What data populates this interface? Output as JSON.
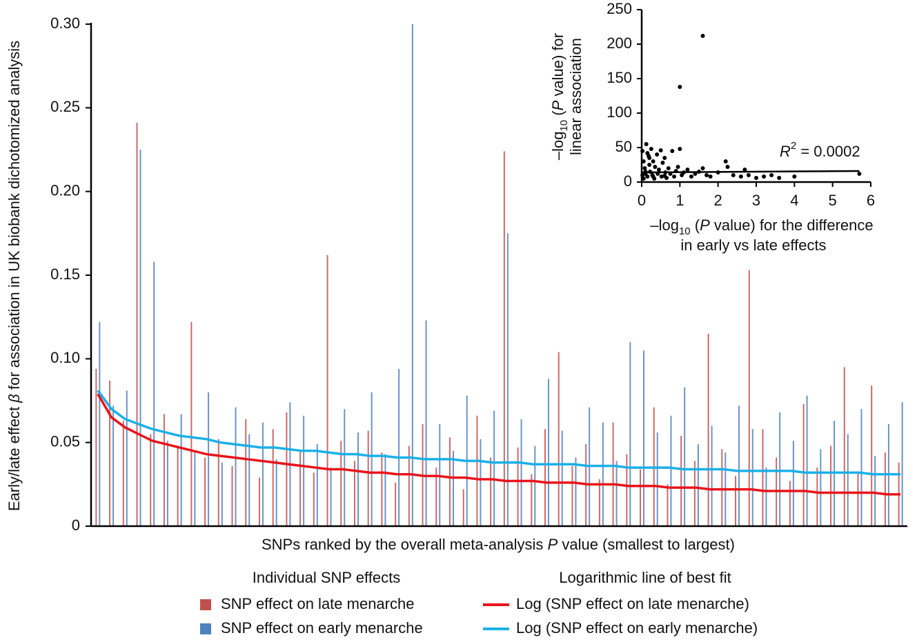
{
  "chart_data": [
    {
      "type": "bar",
      "ylabel": [
        "Early/late effect ",
        "β",
        " for association in UK biobank dichotomized analysis"
      ],
      "xlabel": [
        "SNPs ranked by the overall meta-analysis ",
        "P",
        " value (smallest to largest)"
      ],
      "legend_titles": [
        "Individual SNP effects",
        "Logarithmic line of best fit"
      ],
      "ylim": [
        0,
        0.3
      ],
      "yticks": [
        0,
        0.05,
        {
          "value": 0.1,
          "label": "0.10"
        },
        0.15,
        {
          "value": 0.2,
          "label": "0.20"
        },
        0.25,
        {
          "value": 0.3,
          "label": "0.30"
        }
      ],
      "categories": [
        null,
        null,
        null,
        null,
        null,
        null,
        null,
        null,
        null,
        null,
        null,
        null,
        null,
        null,
        null,
        null,
        null,
        null,
        null,
        null,
        null,
        null,
        null,
        null,
        null,
        null,
        null,
        null,
        null,
        null,
        null,
        null,
        null,
        null,
        null,
        null,
        null,
        null,
        null,
        null,
        null,
        null,
        null,
        null,
        null,
        null,
        null,
        null,
        null,
        null,
        null,
        null,
        null,
        null,
        null,
        null,
        null,
        null,
        null,
        null
      ],
      "series": [
        {
          "name": "SNP effect on late menarche",
          "type": "bar",
          "color": "#c0504d",
          "values": [
            0.094,
            0.087,
            0.063,
            0.241,
            0.055,
            0.067,
            0.048,
            0.122,
            0.041,
            0.052,
            0.036,
            0.064,
            0.029,
            0.058,
            0.068,
            0.045,
            0.032,
            0.162,
            0.051,
            0.039,
            0.057,
            0.044,
            0.026,
            0.048,
            0.061,
            0.035,
            0.053,
            0.022,
            0.066,
            0.041,
            0.224,
            0.047,
            0.031,
            0.058,
            0.104,
            0.036,
            0.049,
            0.028,
            0.062,
            0.043,
            0.034,
            0.071,
            0.025,
            0.054,
            0.039,
            0.115,
            0.046,
            0.03,
            0.153,
            0.058,
            0.041,
            0.027,
            0.073,
            0.035,
            0.048,
            0.095,
            0.032,
            0.084,
            0.044,
            0.038
          ]
        },
        {
          "name": "SNP effect on early menarche",
          "type": "bar",
          "color": "#4f81bd",
          "values": [
            0.122,
            0.072,
            0.081,
            0.225,
            0.158,
            0.051,
            0.067,
            0.044,
            0.08,
            0.038,
            0.071,
            0.055,
            0.062,
            0.04,
            0.074,
            0.066,
            0.049,
            0.035,
            0.07,
            0.056,
            0.08,
            0.043,
            0.094,
            0.3,
            0.123,
            0.061,
            0.045,
            0.078,
            0.052,
            0.069,
            0.175,
            0.064,
            0.048,
            0.088,
            0.057,
            0.041,
            0.071,
            0.062,
            0.039,
            0.11,
            0.105,
            0.056,
            0.066,
            0.083,
            0.049,
            0.06,
            0.044,
            0.072,
            0.058,
            0.035,
            0.068,
            0.051,
            0.078,
            0.046,
            0.063,
            0.055,
            0.07,
            0.042,
            0.061,
            0.074
          ]
        },
        {
          "name": "Log (SNP effect on late menarche)",
          "type": "line",
          "color": "#e8141b",
          "values": [
            0.079,
            0.065,
            0.059,
            0.055,
            0.051,
            0.049,
            0.047,
            0.045,
            0.043,
            0.042,
            0.041,
            0.04,
            0.039,
            0.038,
            0.037,
            0.036,
            0.035,
            0.034,
            0.034,
            0.033,
            0.032,
            0.032,
            0.031,
            0.031,
            0.03,
            0.03,
            0.029,
            0.029,
            0.028,
            0.028,
            0.027,
            0.027,
            0.027,
            0.026,
            0.026,
            0.026,
            0.025,
            0.025,
            0.025,
            0.024,
            0.024,
            0.024,
            0.023,
            0.023,
            0.023,
            0.022,
            0.022,
            0.022,
            0.022,
            0.021,
            0.021,
            0.021,
            0.021,
            0.02,
            0.02,
            0.02,
            0.02,
            0.02,
            0.019,
            0.019
          ]
        },
        {
          "name": "Log (SNP effect on early menarche)",
          "type": "line",
          "color": "#1ab0e8",
          "values": [
            0.081,
            0.07,
            0.064,
            0.061,
            0.058,
            0.056,
            0.054,
            0.053,
            0.052,
            0.05,
            0.049,
            0.048,
            0.047,
            0.047,
            0.046,
            0.045,
            0.045,
            0.044,
            0.043,
            0.043,
            0.042,
            0.042,
            0.041,
            0.041,
            0.04,
            0.04,
            0.04,
            0.039,
            0.039,
            0.038,
            0.038,
            0.038,
            0.037,
            0.037,
            0.037,
            0.037,
            0.036,
            0.036,
            0.036,
            0.035,
            0.035,
            0.035,
            0.035,
            0.034,
            0.034,
            0.034,
            0.034,
            0.033,
            0.033,
            0.033,
            0.033,
            0.033,
            0.032,
            0.032,
            0.032,
            0.032,
            0.032,
            0.031,
            0.031,
            0.031
          ]
        }
      ]
    },
    {
      "type": "scatter",
      "xlabel": [
        "–log",
        "10",
        " (",
        "P",
        " value) for the difference",
        "in early vs late effects"
      ],
      "ylabel": [
        "–log",
        "10",
        " (",
        "P",
        " value) for",
        "linear association"
      ],
      "xlim": [
        0,
        6
      ],
      "xticks": [
        0,
        1,
        2,
        3,
        4,
        5,
        6
      ],
      "ylim": [
        0,
        250
      ],
      "yticks": [
        0,
        50,
        100,
        150,
        200,
        250
      ],
      "color": "#000000",
      "x": [
        0.02,
        0.05,
        0.08,
        0.1,
        0.12,
        0.15,
        0.18,
        0.2,
        0.22,
        0.25,
        0.28,
        0.3,
        0.33,
        0.35,
        0.4,
        0.42,
        0.45,
        0.5,
        0.52,
        0.55,
        0.6,
        0.62,
        0.65,
        0.7,
        0.75,
        0.8,
        0.85,
        0.9,
        0.95,
        1.0,
        1.05,
        1.1,
        1.2,
        1.3,
        1.4,
        1.5,
        1.6,
        1.7,
        1.8,
        2.0,
        2.2,
        2.25,
        2.4,
        2.6,
        2.7,
        2.8,
        3.0,
        3.2,
        3.4,
        3.6,
        4.0,
        5.7,
        0.02,
        0.05,
        0.1,
        0.2,
        0.3,
        1.6,
        1.0,
        0.15,
        0.6
      ],
      "y": [
        45,
        30,
        20,
        12,
        55,
        8,
        38,
        25,
        15,
        48,
        10,
        30,
        5,
        22,
        40,
        12,
        18,
        46,
        8,
        28,
        35,
        14,
        6,
        20,
        12,
        45,
        8,
        16,
        22,
        48,
        10,
        14,
        18,
        8,
        12,
        15,
        212,
        10,
        8,
        14,
        30,
        22,
        10,
        8,
        18,
        10,
        6,
        8,
        10,
        6,
        8,
        12,
        10,
        5,
        15,
        35,
        8,
        20,
        138,
        42,
        9
      ],
      "fit": {
        "x": [
          0,
          5.7
        ],
        "y": [
          14,
          16
        ]
      },
      "annotation": [
        "R",
        "2",
        " = 0.0002"
      ]
    }
  ]
}
